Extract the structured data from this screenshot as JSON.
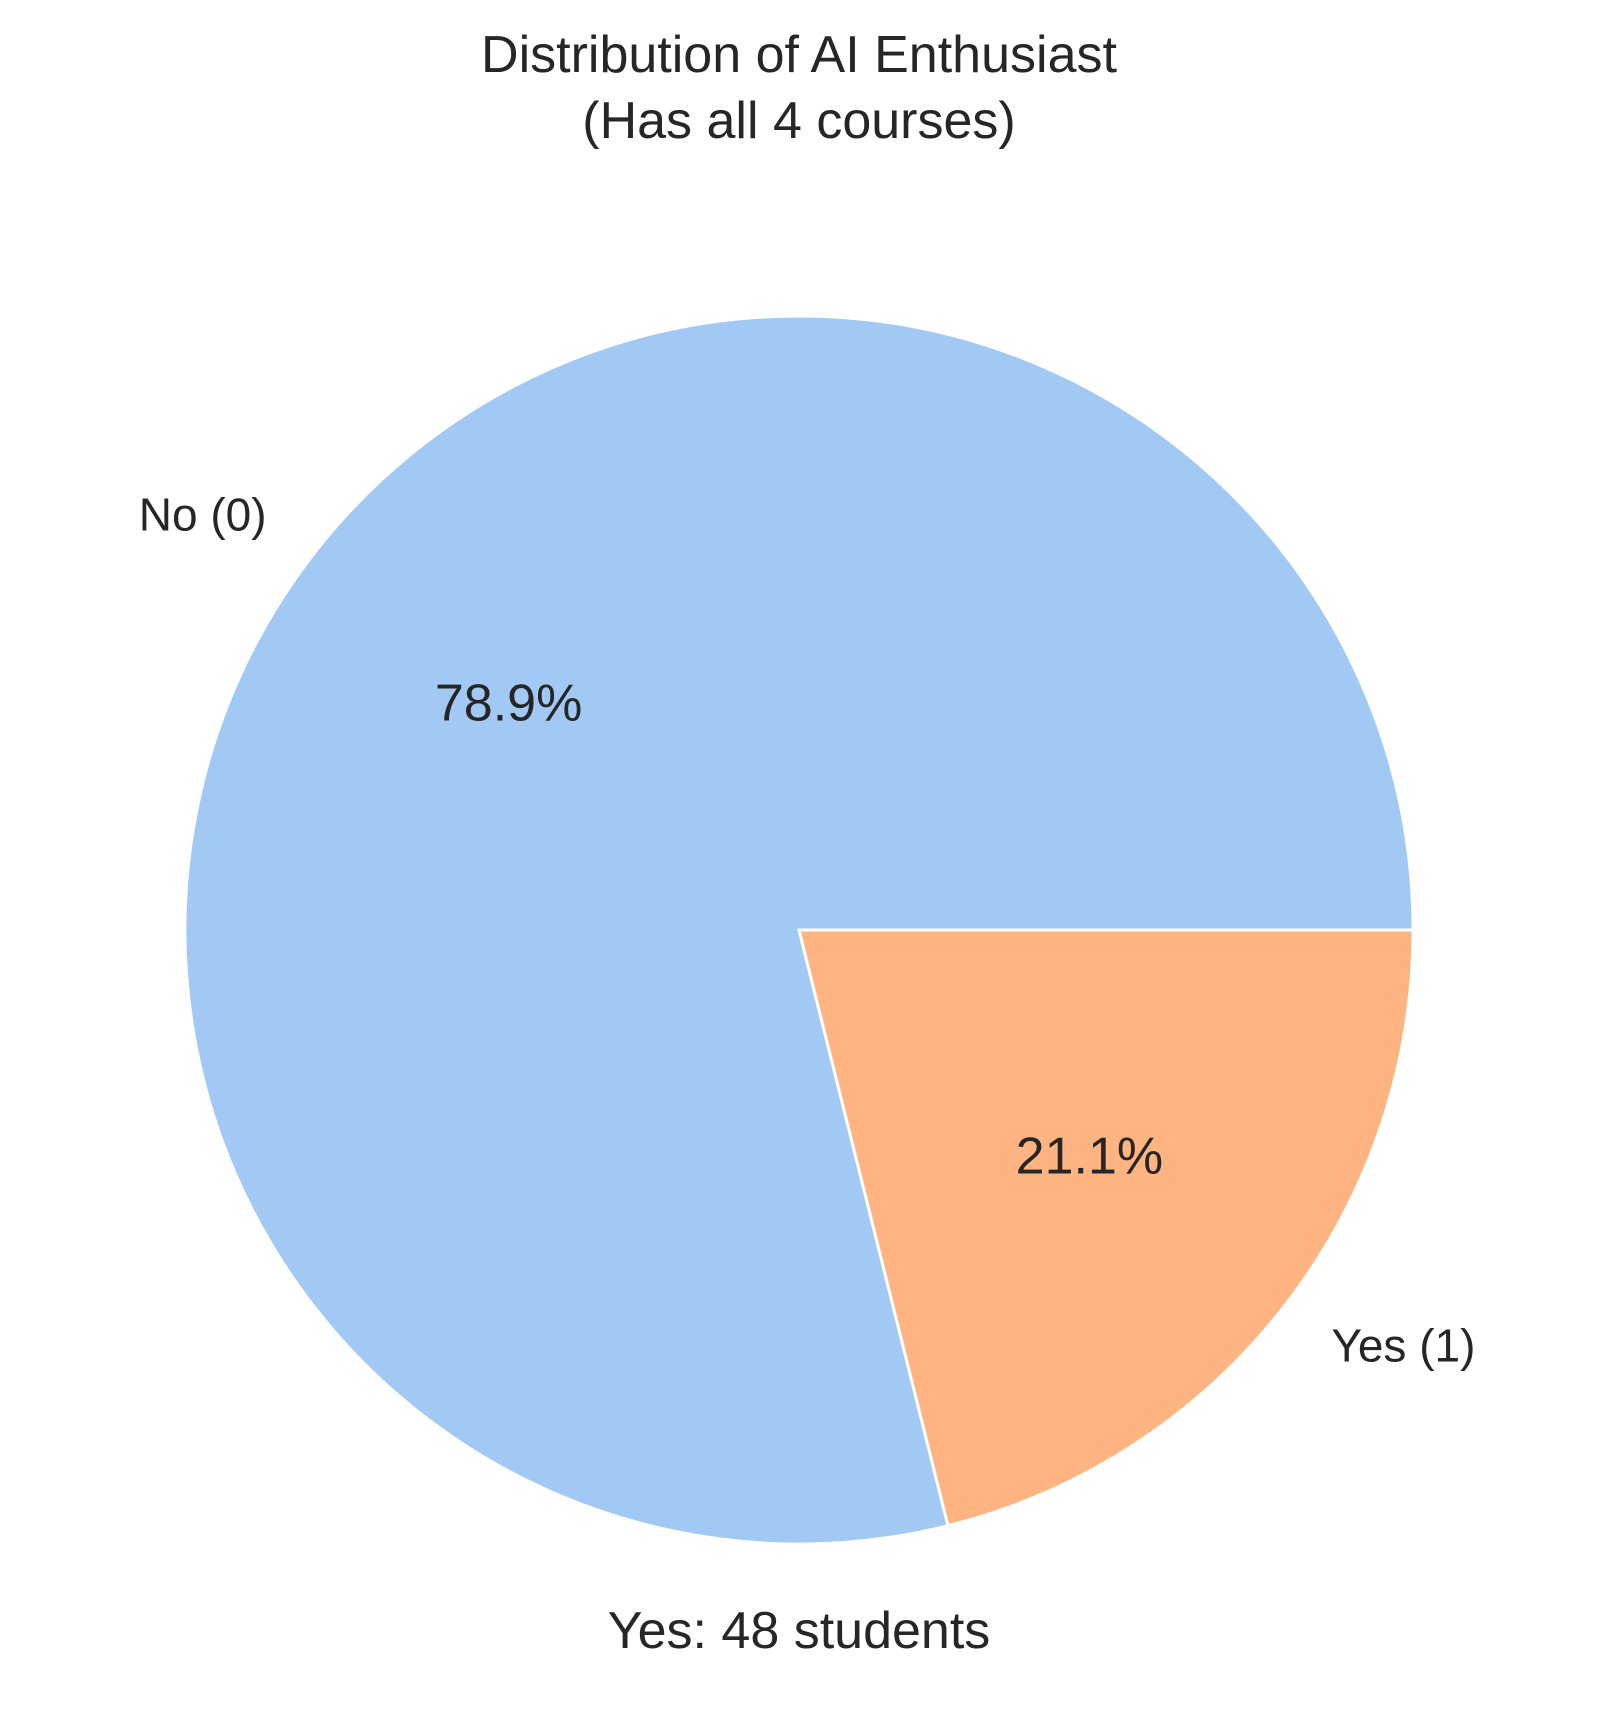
{
  "chart_data": {
    "type": "pie",
    "title_lines": [
      "Distribution of AI Enthusiast",
      "(Has all 4 courses)"
    ],
    "categories": [
      "No (0)",
      "Yes (1)"
    ],
    "values": [
      78.9,
      21.1
    ],
    "percent_labels": [
      "78.9%",
      "21.1%"
    ],
    "colors": [
      "#a1c9f4",
      "#ffb482"
    ],
    "edge_color": "#ffffff",
    "start_angle_deg": 0,
    "direction": "counterclockwise",
    "footer": "Yes: 48 students"
  }
}
